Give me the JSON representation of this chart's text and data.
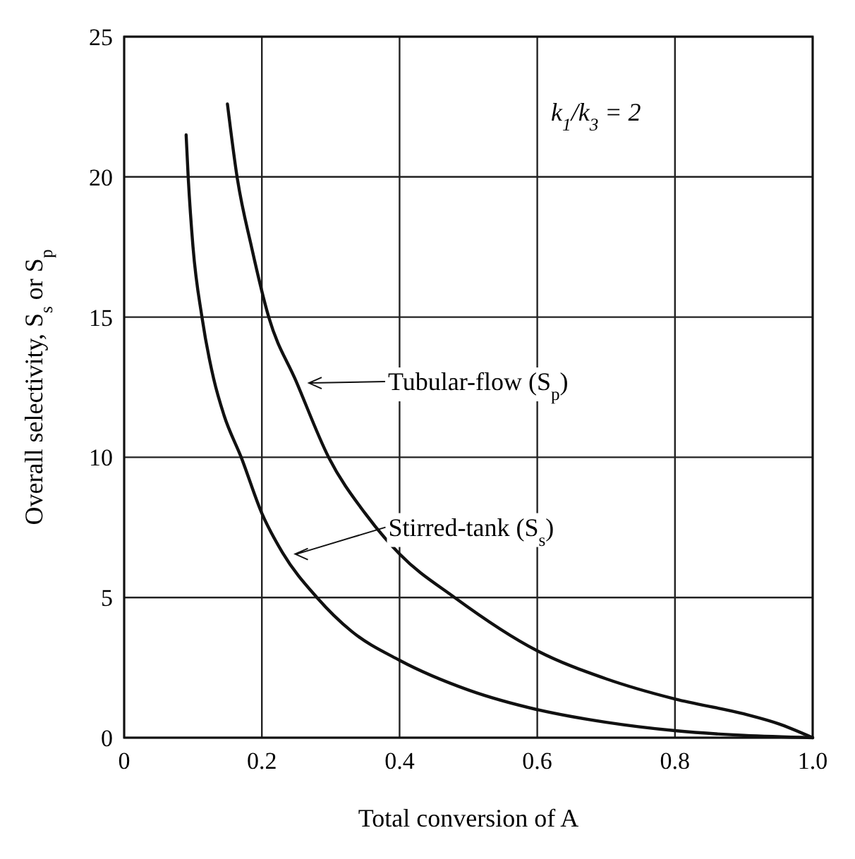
{
  "chart_data": {
    "type": "line",
    "xlabel": "Total conversion of A",
    "ylabel": "Overall selectivity, S$_{s}$ or S$_{p}$",
    "xlim": [
      0,
      1
    ],
    "ylim": [
      0,
      25
    ],
    "xticks": [
      0,
      0.2,
      0.4,
      0.6,
      0.8,
      {
        "value": 1,
        "label": "1.0"
      }
    ],
    "yticks": [
      0,
      5,
      10,
      15,
      20,
      25
    ],
    "grid": true,
    "legend": "center",
    "marker": "none",
    "line_style": "solid",
    "annotations": [
      "k$_{1}$/k$_{3}$ = 2"
    ],
    "series": [
      {
        "name": "Tubular-flow (S$_{p}$)",
        "color": "#111111",
        "x": [
          0.15,
          0.164,
          0.185,
          0.21,
          0.25,
          0.297,
          0.35,
          0.4,
          0.48,
          0.6,
          0.7,
          0.8,
          0.9,
          0.95,
          1.0
        ],
        "values": [
          22.6,
          20,
          17.5,
          15,
          12.7,
          10,
          8,
          6.55,
          5,
          3.1,
          2.1,
          1.38,
          0.85,
          0.5,
          0
        ]
      },
      {
        "name": "Stirred-tank (S$_{s}$)",
        "color": "#111111",
        "x": [
          0.09,
          0.093,
          0.1,
          0.113,
          0.13,
          0.145,
          0.17,
          0.2,
          0.23,
          0.28,
          0.33,
          0.4,
          0.5,
          0.6,
          0.7,
          0.8,
          0.9,
          1.0
        ],
        "values": [
          21.5,
          20,
          17.5,
          15,
          12.8,
          11.5,
          10,
          8.0,
          6.6,
          5,
          3.8,
          2.76,
          1.7,
          1.0,
          0.55,
          0.25,
          0.08,
          0
        ]
      }
    ]
  }
}
